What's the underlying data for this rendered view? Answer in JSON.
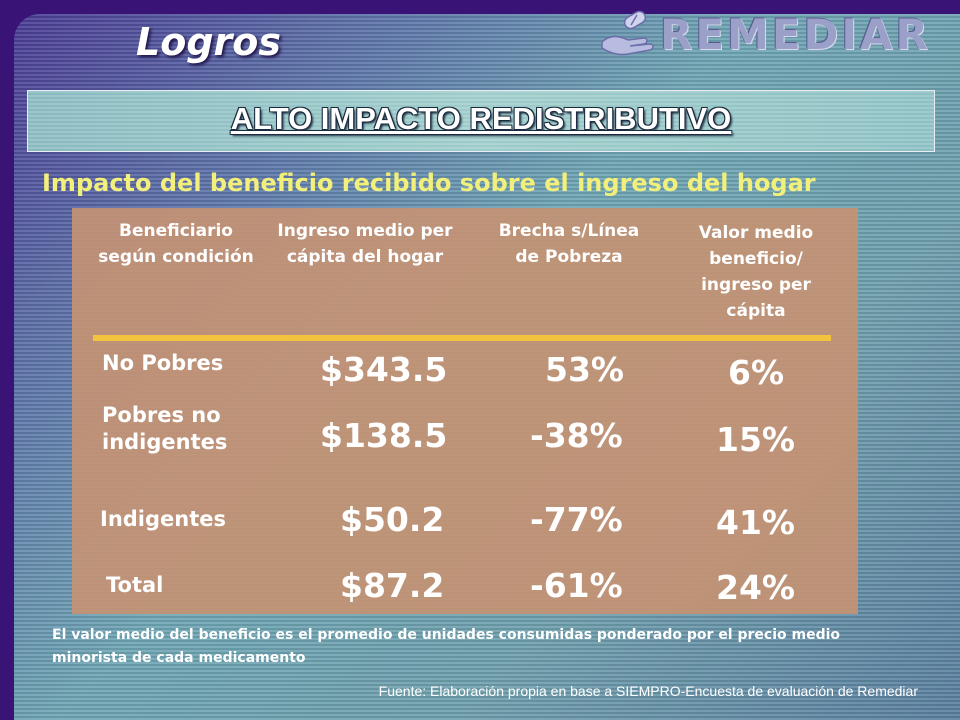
{
  "slide_title": "Logros",
  "logo": {
    "text": "REMEDIAR"
  },
  "banner": "ALTO IMPACTO REDISTRIBUTIVO",
  "subtitle": "Impacto del beneficio recibido sobre el ingreso del hogar",
  "table": {
    "headers": [
      "Beneficiario según condición",
      "Ingreso medio per cápita del hogar",
      "Brecha s/Línea de Pobreza",
      "Valor medio beneficio/ ingreso per cápita"
    ],
    "rows": [
      {
        "label": "No Pobres",
        "ingreso": "$343.5",
        "brecha": "53%",
        "valor": "6%"
      },
      {
        "label": "Pobres no indigentes",
        "ingreso": "$138.5",
        "brecha": "-38%",
        "valor": "15%"
      },
      {
        "label": "Indigentes",
        "ingreso": "$50.2",
        "brecha": "-77%",
        "valor": "41%"
      },
      {
        "label": "Total",
        "ingreso": "$87.2",
        "brecha": "-61%",
        "valor": "24%"
      }
    ]
  },
  "note": "El valor medio del beneficio es el promedio de unidades consumidas ponderado por el precio medio minorista de cada medicamento",
  "source": "Fuente: Elaboración propia en base a SIEMPRO-Encuesta de evaluación de Remediar",
  "colors": {
    "background": "#3a1377",
    "subtitle": "#f2ef7a",
    "table": "#c49374",
    "rule": "#f3c33f"
  }
}
